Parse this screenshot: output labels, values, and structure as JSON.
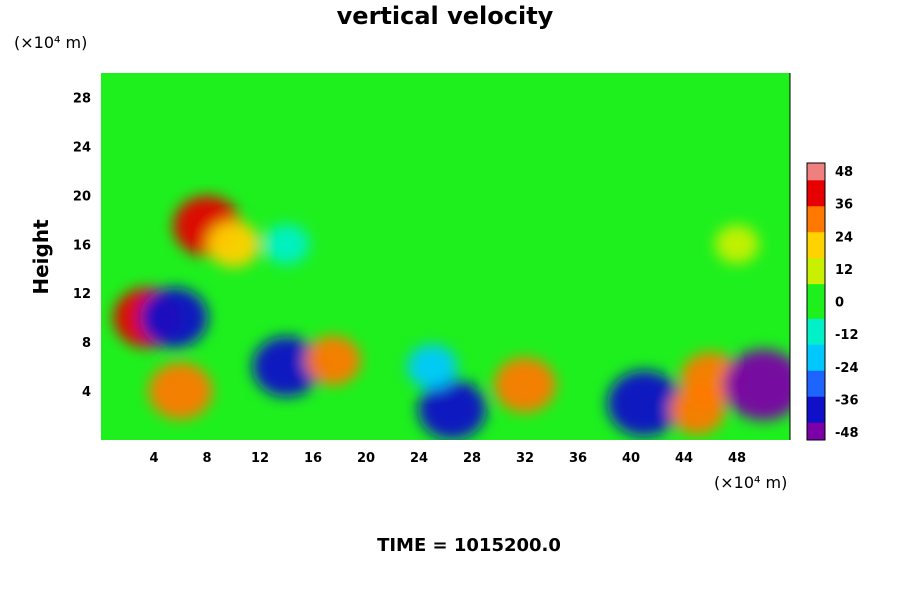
{
  "chart_data": {
    "type": "heatmap",
    "title": "vertical velocity",
    "ylabel": "Height",
    "xlabel": "",
    "x_unit_label": "(×10⁴ m)",
    "y_unit_label": "(×10⁴ m)",
    "xlim": [
      0,
      52
    ],
    "ylim": [
      0,
      30
    ],
    "x_ticks": [
      4,
      8,
      12,
      16,
      20,
      24,
      28,
      32,
      36,
      40,
      44,
      48
    ],
    "y_ticks": [
      4,
      8,
      12,
      16,
      20,
      24,
      28
    ],
    "colorbar": {
      "ticks": [
        48,
        36,
        24,
        12,
        0,
        -12,
        -24,
        -36,
        -48
      ],
      "range": [
        -48,
        48
      ],
      "colors": [
        "#7b00a8",
        "#1010c8",
        "#1e64ff",
        "#00c8ff",
        "#00f0c8",
        "#1ef01e",
        "#c8f000",
        "#ffd200",
        "#ff7800",
        "#e60000",
        "#f08080"
      ]
    },
    "field_features": [
      {
        "x": 6,
        "y": 4,
        "value": 32
      },
      {
        "x": 3.5,
        "y": 10,
        "value": 36
      },
      {
        "x": 5.5,
        "y": 10,
        "value": -36
      },
      {
        "x": 14,
        "y": 6,
        "value": -36
      },
      {
        "x": 17.5,
        "y": 6.5,
        "value": 24
      },
      {
        "x": 26.5,
        "y": 2.5,
        "value": -36
      },
      {
        "x": 25,
        "y": 6,
        "value": -18
      },
      {
        "x": 32,
        "y": 4.5,
        "value": 30
      },
      {
        "x": 41,
        "y": 3,
        "value": -42
      },
      {
        "x": 46,
        "y": 5,
        "value": 28
      },
      {
        "x": 45,
        "y": 2.5,
        "value": 24
      },
      {
        "x": 50,
        "y": 4.5,
        "value": -48
      },
      {
        "x": 8,
        "y": 17.5,
        "value": 36
      },
      {
        "x": 10,
        "y": 16,
        "value": 20
      },
      {
        "x": 14,
        "y": 16,
        "value": -14
      },
      {
        "x": 48,
        "y": 16,
        "value": 12
      }
    ]
  },
  "footer": {
    "time_label": "TIME = 1015200.0"
  }
}
